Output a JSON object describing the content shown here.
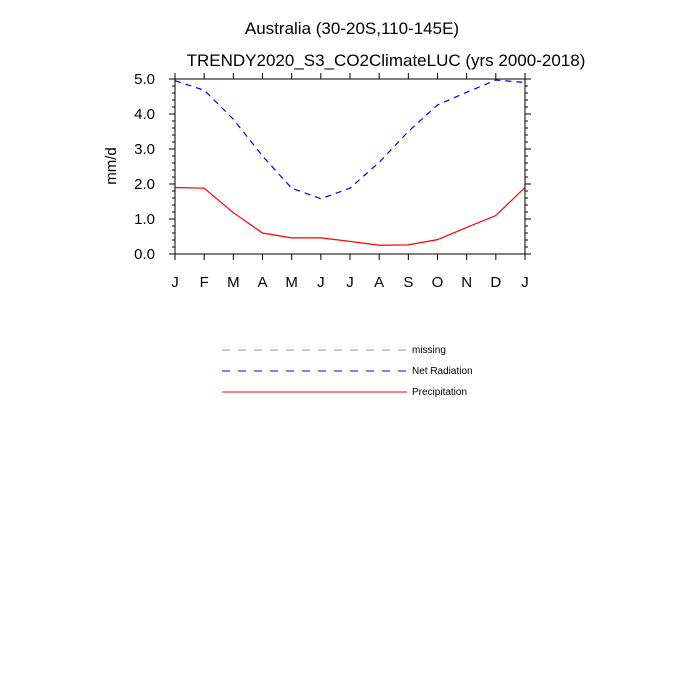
{
  "chart_data": {
    "type": "line",
    "title": "Australia (30-20S,110-145E)",
    "subtitle": "TRENDY2020_S3_CO2ClimateLUC (yrs 2000-2018)",
    "ylabel": "mm/d",
    "xlabel": "",
    "categories": [
      "J",
      "F",
      "M",
      "A",
      "M",
      "J",
      "J",
      "A",
      "S",
      "O",
      "N",
      "D",
      "J"
    ],
    "ylim": [
      0,
      5
    ],
    "yticks": [
      "0.0",
      "1.0",
      "2.0",
      "3.0",
      "4.0",
      "5.0"
    ],
    "grid": false,
    "series": [
      {
        "name": "Net Radiation",
        "color": "#0000ff",
        "style": "dashed",
        "values": [
          4.95,
          4.68,
          3.85,
          2.8,
          1.88,
          1.58,
          1.88,
          2.62,
          3.5,
          4.26,
          4.62,
          4.97,
          4.9
        ]
      },
      {
        "name": "Precipitation",
        "color": "#ff0000",
        "style": "solid",
        "values": [
          1.9,
          1.88,
          1.18,
          0.6,
          0.46,
          0.46,
          0.36,
          0.25,
          0.26,
          0.41,
          0.76,
          1.1,
          1.9
        ]
      }
    ],
    "legend": {
      "placement": "below",
      "entries": [
        {
          "label": "missing",
          "color": "#999999",
          "style": "dashed"
        },
        {
          "label": "Net Radiation",
          "color": "#0000ff",
          "style": "dashed"
        },
        {
          "label": "Precipitation",
          "color": "#ff0000",
          "style": "solid"
        }
      ]
    }
  }
}
